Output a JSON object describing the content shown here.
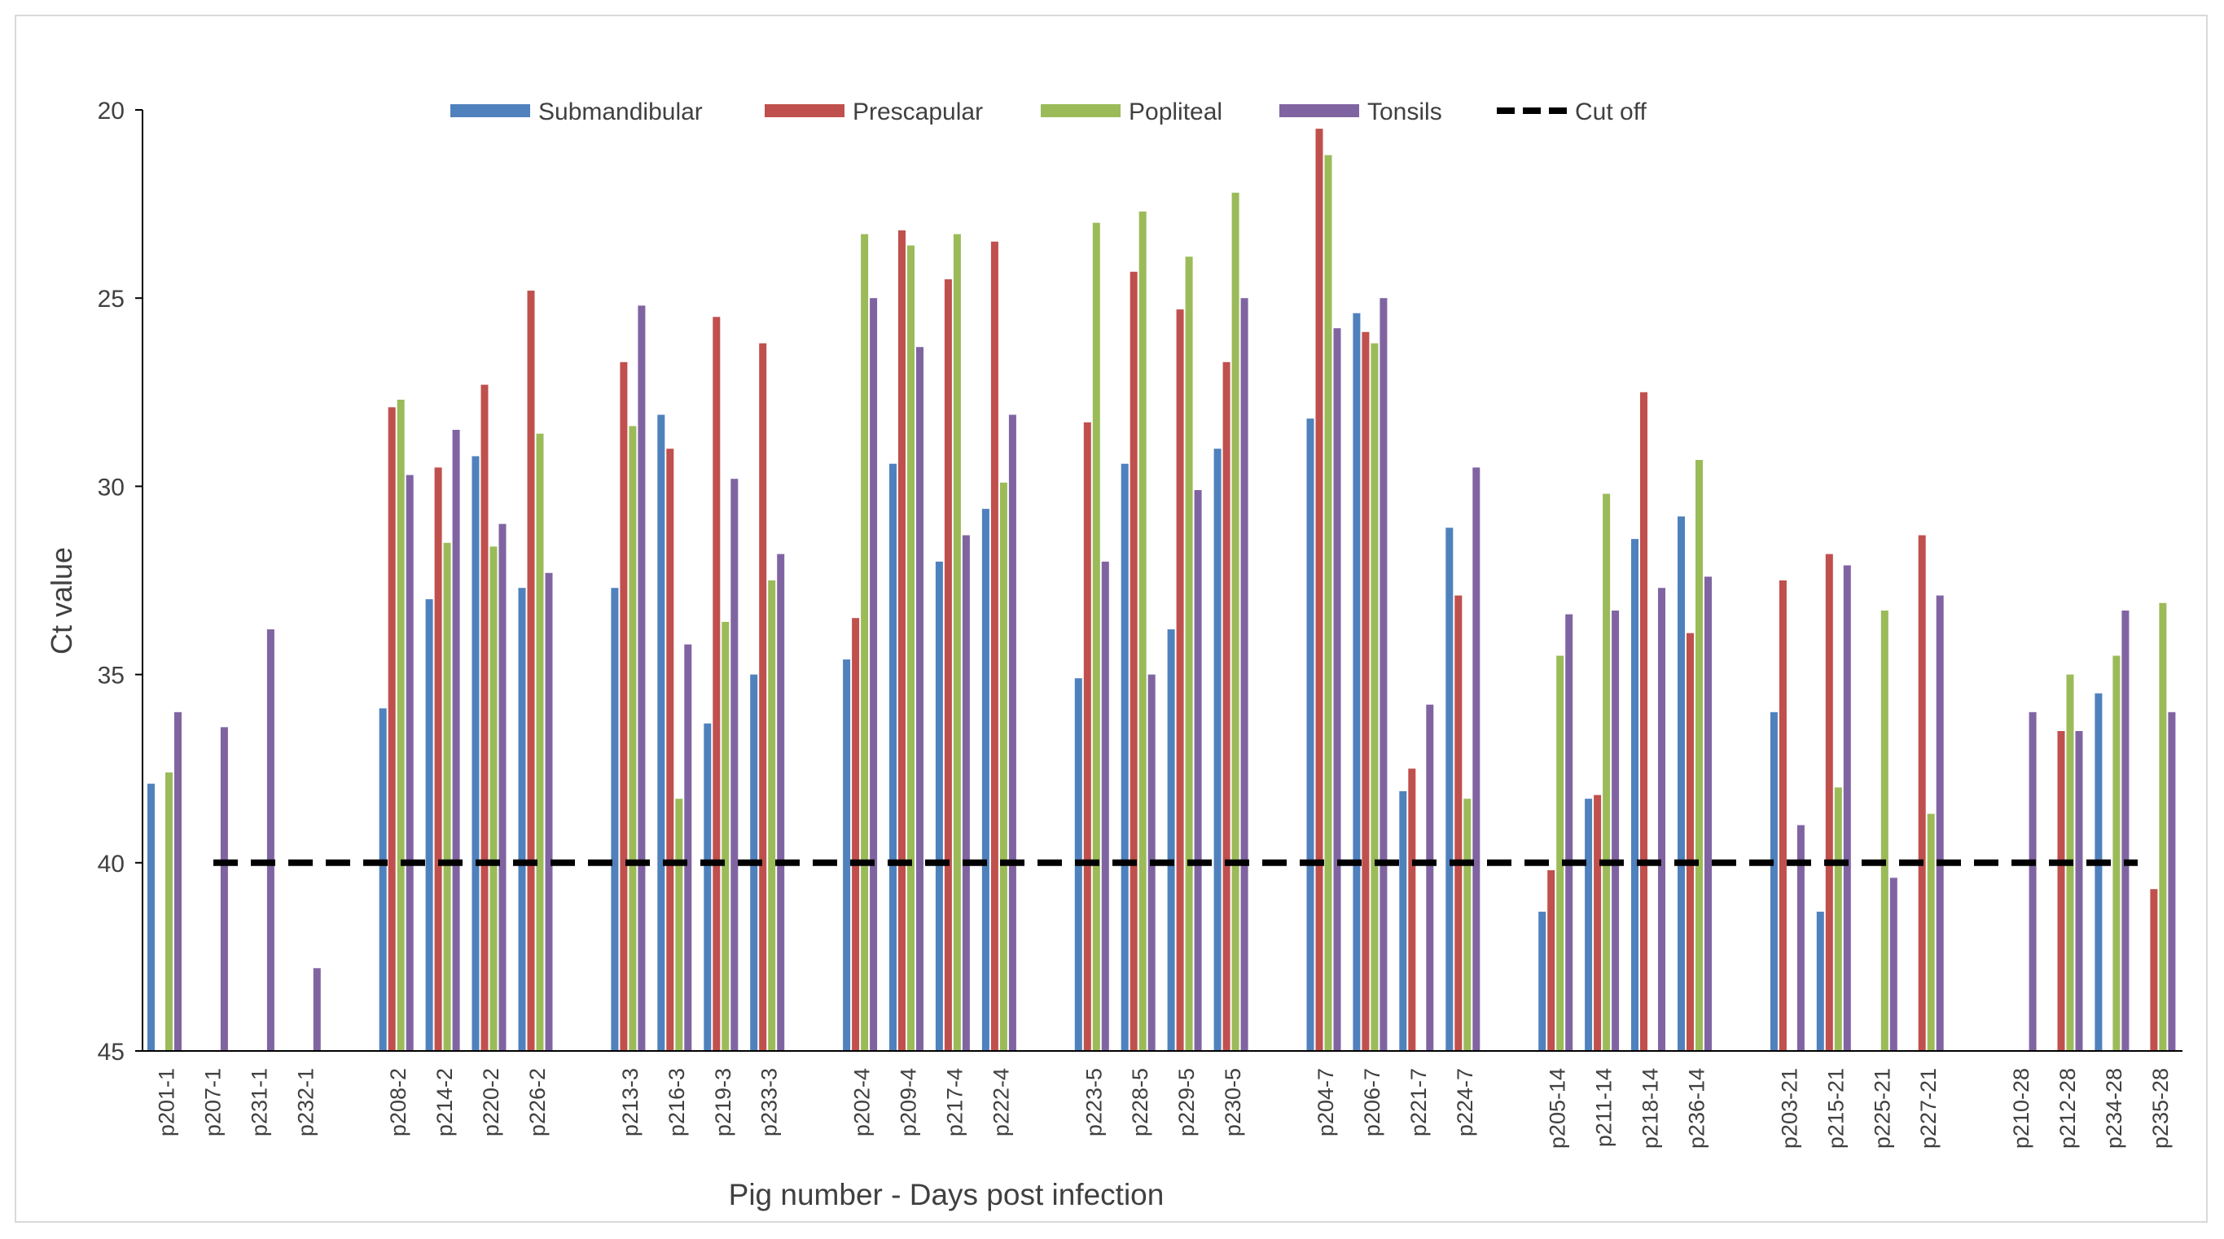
{
  "chart_data": {
    "type": "bar",
    "title": "",
    "xlabel": "Pig number - Days post infection",
    "ylabel": "Ct value",
    "ylim": [
      20,
      45
    ],
    "y_inverted": true,
    "yticks": [
      20,
      25,
      30,
      35,
      40,
      45
    ],
    "grid": false,
    "legend_position": "top",
    "colors": {
      "Submandibular": "#4f81bd",
      "Prescapular": "#c0504d",
      "Popliteal": "#9bbb59",
      "Tonsils": "#8064a2",
      "Cut off": "#000000"
    },
    "legend": [
      "Submandibular",
      "Prescapular",
      "Popliteal",
      "Tonsils",
      "Cut off"
    ],
    "cutoff": {
      "name": "Cut off",
      "value": 40
    },
    "groups": [
      {
        "day": "1",
        "categories": [
          "p201-1",
          "p207-1",
          "p231-1",
          "p232-1"
        ]
      },
      {
        "day": "2",
        "categories": [
          "p208-2",
          "p214-2",
          "p220-2",
          "p226-2"
        ]
      },
      {
        "day": "3",
        "categories": [
          "p213-3",
          "p216-3",
          "p219-3",
          "p233-3"
        ]
      },
      {
        "day": "4",
        "categories": [
          "p202-4",
          "p209-4",
          "p217-4",
          "p222-4"
        ]
      },
      {
        "day": "5",
        "categories": [
          "p223-5",
          "p228-5",
          "p229-5",
          "p230-5"
        ]
      },
      {
        "day": "7",
        "categories": [
          "p204-7",
          "p206-7",
          "p221-7",
          "p224-7"
        ]
      },
      {
        "day": "14",
        "categories": [
          "p205-14",
          "p211-14",
          "p218-14",
          "p236-14"
        ]
      },
      {
        "day": "21",
        "categories": [
          "p203-21",
          "p215-21",
          "p225-21",
          "p227-21"
        ]
      },
      {
        "day": "28",
        "categories": [
          "p210-28",
          "p212-28",
          "p234-28",
          "p235-28"
        ]
      }
    ],
    "series": [
      {
        "name": "Submandibular",
        "values": [
          37.9,
          null,
          null,
          null,
          35.9,
          33.0,
          29.2,
          32.7,
          32.7,
          28.1,
          36.3,
          35.0,
          34.6,
          29.4,
          32.0,
          30.6,
          35.1,
          29.4,
          33.8,
          29.0,
          28.2,
          25.4,
          38.1,
          31.1,
          41.3,
          38.3,
          31.4,
          30.8,
          36.0,
          41.3,
          null,
          null,
          null,
          null,
          35.5,
          null
        ]
      },
      {
        "name": "Prescapular",
        "values": [
          null,
          null,
          null,
          null,
          27.9,
          29.5,
          27.3,
          24.8,
          26.7,
          29.0,
          25.5,
          26.2,
          33.5,
          23.2,
          24.5,
          23.5,
          28.3,
          24.3,
          25.3,
          26.7,
          20.5,
          25.9,
          37.5,
          32.9,
          40.2,
          38.2,
          27.5,
          33.9,
          32.5,
          31.8,
          null,
          31.3,
          null,
          36.5,
          null,
          40.7
        ]
      },
      {
        "name": "Popliteal",
        "values": [
          37.6,
          null,
          null,
          null,
          27.7,
          31.5,
          31.6,
          28.6,
          28.4,
          38.3,
          33.6,
          32.5,
          23.3,
          23.6,
          23.3,
          29.9,
          23.0,
          22.7,
          23.9,
          22.2,
          21.2,
          26.2,
          null,
          38.3,
          34.5,
          30.2,
          null,
          29.3,
          null,
          38.0,
          33.3,
          38.7,
          null,
          35.0,
          34.5,
          33.1
        ]
      },
      {
        "name": "Tonsils",
        "values": [
          36.0,
          36.4,
          33.8,
          42.8,
          29.7,
          28.5,
          31.0,
          32.3,
          25.2,
          34.2,
          29.8,
          31.8,
          25.0,
          26.3,
          31.3,
          28.1,
          32.0,
          35.0,
          30.1,
          25.0,
          25.8,
          25.0,
          35.8,
          29.5,
          33.4,
          33.3,
          32.7,
          32.4,
          39.0,
          32.1,
          40.4,
          32.9,
          36.0,
          36.5,
          33.3,
          36.0
        ]
      }
    ]
  }
}
